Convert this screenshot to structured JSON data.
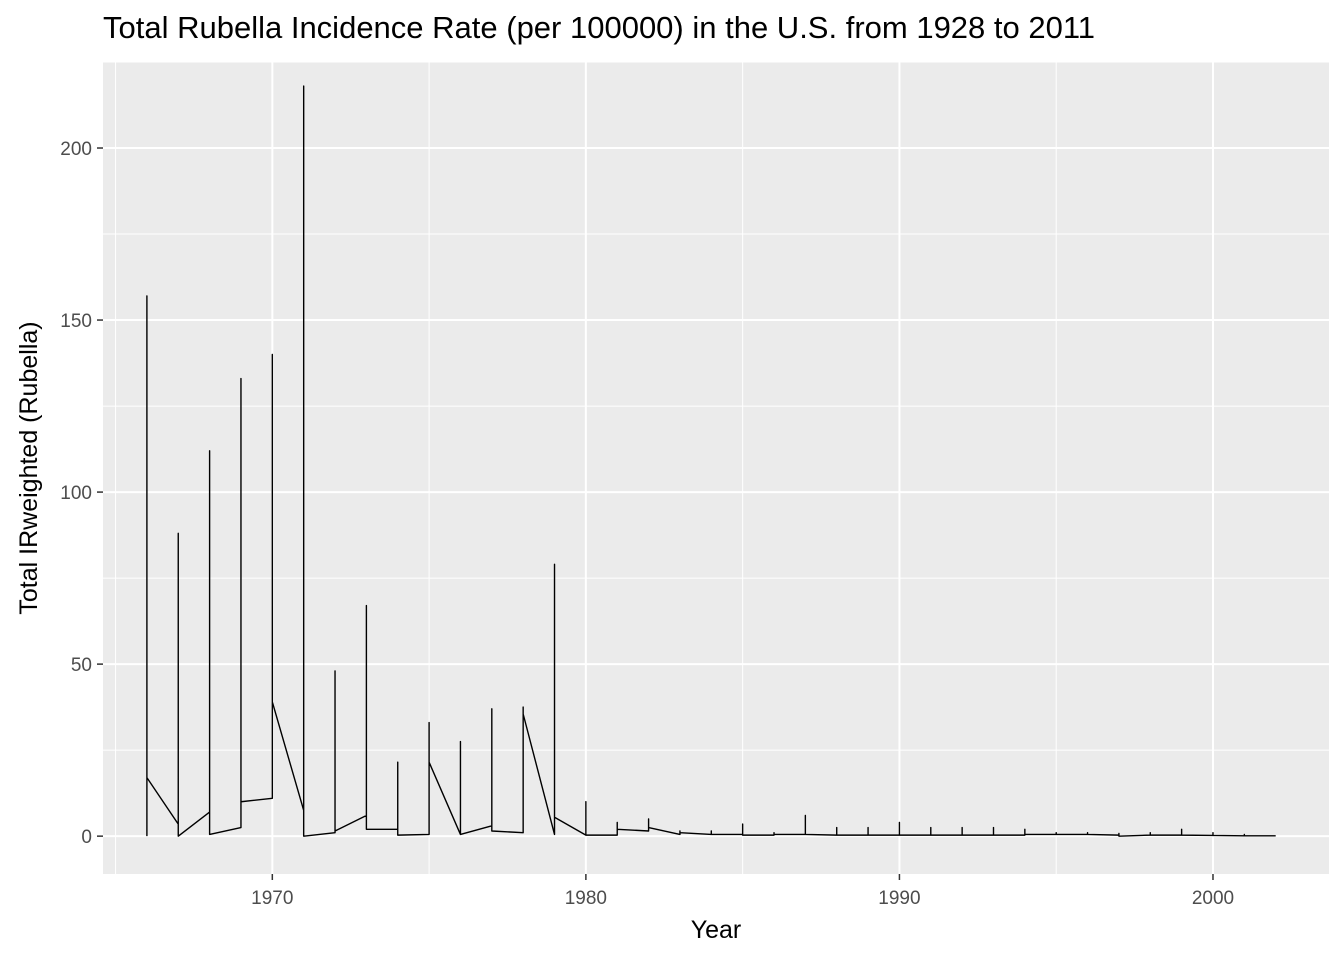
{
  "chart_data": {
    "type": "line",
    "title": "Total Rubella Incidence Rate (per 100000) in the U.S. from 1928 to 2011",
    "xlabel": "Year",
    "ylabel": "Total IRweighted (Rubella)",
    "xlim": [
      1964.6,
      2003.7
    ],
    "ylim": [
      -11,
      225
    ],
    "x_ticks": [
      1970,
      1980,
      1990,
      2000
    ],
    "y_ticks": [
      0,
      50,
      100,
      150,
      200
    ],
    "grid": true,
    "legend": "none",
    "line_color": "#000000",
    "series": [
      {
        "points": [
          [
            1966,
            0
          ],
          [
            1966,
            157
          ],
          [
            1966,
            17
          ],
          [
            1967,
            3.5
          ],
          [
            1967,
            88
          ],
          [
            1967,
            0
          ],
          [
            1968,
            7
          ],
          [
            1968,
            112
          ],
          [
            1968,
            0.5
          ],
          [
            1969,
            2.5
          ],
          [
            1969,
            133
          ],
          [
            1969,
            10
          ],
          [
            1970,
            11
          ],
          [
            1970,
            140
          ],
          [
            1970,
            39
          ],
          [
            1971,
            7.5
          ],
          [
            1971,
            218
          ],
          [
            1971,
            0
          ],
          [
            1972,
            1
          ],
          [
            1972,
            48
          ],
          [
            1972,
            1.5
          ],
          [
            1973,
            6
          ],
          [
            1973,
            67
          ],
          [
            1973,
            2
          ],
          [
            1974,
            2
          ],
          [
            1974,
            21.5
          ],
          [
            1974,
            0.3
          ],
          [
            1975,
            0.5
          ],
          [
            1975,
            33
          ],
          [
            1975,
            21.5
          ],
          [
            1976,
            0.5
          ],
          [
            1976,
            27.5
          ],
          [
            1976,
            0.5
          ],
          [
            1977,
            3
          ],
          [
            1977,
            37
          ],
          [
            1977,
            1.5
          ],
          [
            1978,
            1
          ],
          [
            1978,
            37.5
          ],
          [
            1978,
            35.5
          ],
          [
            1979,
            0.5
          ],
          [
            1979,
            79
          ],
          [
            1979,
            5.5
          ],
          [
            1980,
            0.3
          ],
          [
            1980,
            10
          ],
          [
            1980,
            0.3
          ],
          [
            1981,
            0.3
          ],
          [
            1981,
            4
          ],
          [
            1981,
            2
          ],
          [
            1982,
            1.5
          ],
          [
            1982,
            5
          ],
          [
            1982,
            2.5
          ],
          [
            1983,
            0.5
          ],
          [
            1983,
            1.5
          ],
          [
            1983,
            1
          ],
          [
            1984,
            0.5
          ],
          [
            1984,
            1.5
          ],
          [
            1984,
            0.5
          ],
          [
            1985,
            0.5
          ],
          [
            1985,
            3.5
          ],
          [
            1985,
            0.3
          ],
          [
            1986,
            0.3
          ],
          [
            1986,
            1
          ],
          [
            1986,
            0.5
          ],
          [
            1987,
            0.5
          ],
          [
            1987,
            6
          ],
          [
            1987,
            0.5
          ],
          [
            1988,
            0.3
          ],
          [
            1988,
            2.5
          ],
          [
            1988,
            0.3
          ],
          [
            1989,
            0.3
          ],
          [
            1989,
            2.5
          ],
          [
            1989,
            0.3
          ],
          [
            1990,
            0.3
          ],
          [
            1990,
            4
          ],
          [
            1990,
            0.3
          ],
          [
            1991,
            0.3
          ],
          [
            1991,
            2.5
          ],
          [
            1991,
            0.3
          ],
          [
            1992,
            0.3
          ],
          [
            1992,
            2.5
          ],
          [
            1992,
            0.3
          ],
          [
            1993,
            0.3
          ],
          [
            1993,
            2.5
          ],
          [
            1993,
            0.3
          ],
          [
            1994,
            0.3
          ],
          [
            1994,
            2
          ],
          [
            1994,
            0.5
          ],
          [
            1995,
            0.5
          ],
          [
            1995,
            1
          ],
          [
            1995,
            0.5
          ],
          [
            1996,
            0.5
          ],
          [
            1996,
            1
          ],
          [
            1996,
            0.5
          ],
          [
            1997,
            0.3
          ],
          [
            1997,
            0.8
          ],
          [
            1997,
            0
          ],
          [
            1998,
            0.3
          ],
          [
            1998,
            1
          ],
          [
            1998,
            0.3
          ],
          [
            1999,
            0.3
          ],
          [
            1999,
            2
          ],
          [
            1999,
            0.3
          ],
          [
            2000,
            0.2
          ],
          [
            2000,
            1
          ],
          [
            2000,
            0.2
          ],
          [
            2001,
            0.1
          ],
          [
            2001,
            0.5
          ],
          [
            2001,
            0.1
          ],
          [
            2002,
            0.1
          ]
        ]
      }
    ]
  }
}
